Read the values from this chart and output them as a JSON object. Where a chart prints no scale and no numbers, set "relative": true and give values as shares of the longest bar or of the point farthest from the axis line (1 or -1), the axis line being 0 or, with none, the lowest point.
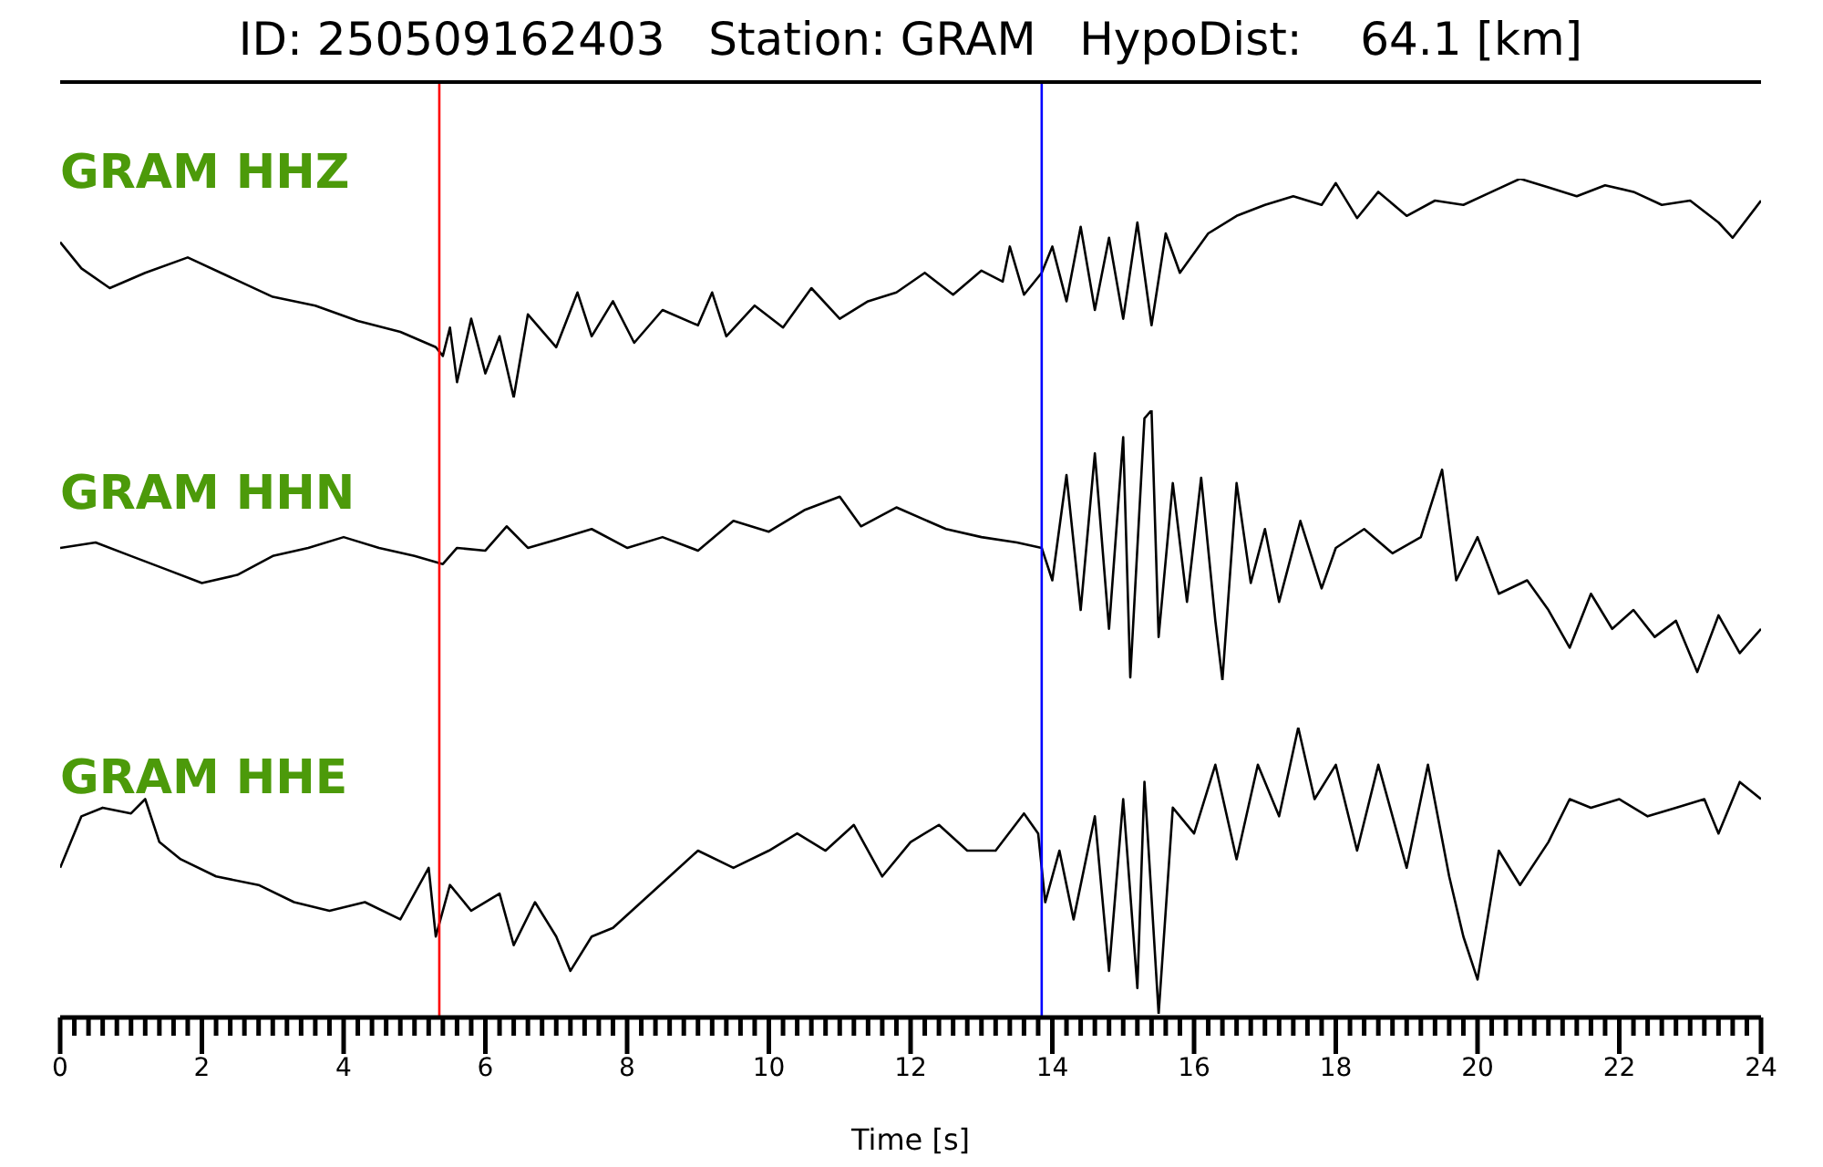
{
  "chart_data": [
    {
      "type": "line",
      "title": "ID: 250509162403   Station: GRAM   HypoDist:    64.1 [km]",
      "relative": true,
      "xlim": [
        0,
        24
      ],
      "tick_labels": false,
      "x": [
        0,
        0.3,
        0.7,
        1.2,
        1.8,
        2.4,
        3,
        3.6,
        4.2,
        4.8,
        5.3,
        5.4,
        5.5,
        5.6,
        5.8,
        6,
        6.2,
        6.4,
        6.6,
        7,
        7.3,
        7.5,
        7.8,
        8.1,
        8.5,
        9,
        9.2,
        9.4,
        9.8,
        10.2,
        10.6,
        11,
        11.4,
        11.8,
        12.2,
        12.6,
        13,
        13.3,
        13.4,
        13.6,
        13.85,
        14,
        14.2,
        14.4,
        14.6,
        14.8,
        15,
        15.2,
        15.4,
        15.6,
        15.8,
        16.2,
        16.6,
        17,
        17.4,
        17.8,
        18,
        18.3,
        18.6,
        19,
        19.4,
        19.8,
        20.2,
        20.6,
        21,
        21.4,
        21.8,
        22.2,
        22.6,
        23,
        23.4,
        23.6,
        24
      ],
      "series": [
        {
          "name": "GRAM HHZ",
          "color": "#000000",
          "values": [
            0.71,
            0.59,
            0.5,
            0.57,
            0.64,
            0.55,
            0.46,
            0.42,
            0.35,
            0.3,
            0.23,
            0.19,
            0.32,
            0.07,
            0.36,
            0.11,
            0.28,
            0,
            0.38,
            0.23,
            0.48,
            0.28,
            0.44,
            0.25,
            0.4,
            0.33,
            0.48,
            0.28,
            0.42,
            0.32,
            0.5,
            0.36,
            0.44,
            0.48,
            0.57,
            0.47,
            0.58,
            0.53,
            0.69,
            0.47,
            0.57,
            0.69,
            0.44,
            0.78,
            0.4,
            0.73,
            0.36,
            0.8,
            0.33,
            0.75,
            0.57,
            0.75,
            0.83,
            0.88,
            0.92,
            0.88,
            0.98,
            0.82,
            0.94,
            0.83,
            0.9,
            0.88,
            0.94,
            1,
            0.96,
            0.92,
            0.97,
            0.94,
            0.88,
            0.9,
            0.8,
            0.73,
            0.9
          ]
        }
      ],
      "ref_lines": [
        {
          "axis": "x",
          "value": 5.35,
          "color": "#ff0000"
        },
        {
          "axis": "x",
          "value": 13.85,
          "color": "#0000ff"
        }
      ]
    },
    {
      "type": "line",
      "relative": true,
      "xlim": [
        0,
        24
      ],
      "tick_labels": false,
      "x": [
        0,
        0.5,
        1,
        1.5,
        2,
        2.5,
        3,
        3.5,
        4,
        4.5,
        5,
        5.4,
        5.6,
        6,
        6.3,
        6.6,
        7,
        7.5,
        8,
        8.5,
        9,
        9.5,
        10,
        10.5,
        11,
        11.3,
        11.8,
        12.5,
        13,
        13.5,
        13.85,
        14,
        14.2,
        14.4,
        14.6,
        14.8,
        15,
        15.1,
        15.3,
        15.4,
        15.5,
        15.7,
        15.9,
        16.1,
        16.3,
        16.4,
        16.6,
        16.8,
        17,
        17.2,
        17.5,
        17.8,
        18,
        18.4,
        18.8,
        19.2,
        19.5,
        19.7,
        20,
        20.3,
        20.7,
        21,
        21.3,
        21.6,
        21.9,
        22.2,
        22.5,
        22.8,
        23.1,
        23.4,
        23.7,
        24
      ],
      "series": [
        {
          "name": "GRAM HHN",
          "color": "#000000",
          "values": [
            0.49,
            0.51,
            0.46,
            0.41,
            0.36,
            0.39,
            0.46,
            0.49,
            0.53,
            0.49,
            0.46,
            0.43,
            0.49,
            0.48,
            0.57,
            0.49,
            0.52,
            0.56,
            0.49,
            0.53,
            0.48,
            0.59,
            0.55,
            0.63,
            0.68,
            0.57,
            0.64,
            0.56,
            0.53,
            0.51,
            0.49,
            0.37,
            0.76,
            0.26,
            0.84,
            0.19,
            0.9,
            0.01,
            0.97,
            1,
            0.16,
            0.73,
            0.29,
            0.75,
            0.22,
            0,
            0.73,
            0.36,
            0.56,
            0.29,
            0.59,
            0.34,
            0.49,
            0.56,
            0.47,
            0.53,
            0.78,
            0.37,
            0.53,
            0.32,
            0.37,
            0.26,
            0.12,
            0.32,
            0.19,
            0.26,
            0.16,
            0.22,
            0.03,
            0.24,
            0.1,
            0.19
          ]
        }
      ],
      "ref_lines": [
        {
          "axis": "x",
          "value": 5.35,
          "color": "#ff0000"
        },
        {
          "axis": "x",
          "value": 13.85,
          "color": "#0000ff"
        }
      ]
    },
    {
      "type": "line",
      "xlabel": "Time [s]",
      "relative": true,
      "xlim": [
        0,
        24
      ],
      "tick_labels": "x",
      "xticks": [
        0,
        {
          "value": 0.2,
          "label": null
        },
        {
          "value": 0.4,
          "label": null
        },
        {
          "value": 0.6,
          "label": null
        },
        {
          "value": 0.8,
          "label": null
        },
        {
          "value": 1,
          "label": null
        },
        {
          "value": 1.2,
          "label": null
        },
        {
          "value": 1.4,
          "label": null
        },
        {
          "value": 1.6,
          "label": null
        },
        {
          "value": 1.8,
          "label": null
        },
        2,
        {
          "value": 2.2,
          "label": null
        },
        {
          "value": 2.4,
          "label": null
        },
        {
          "value": 2.6,
          "label": null
        },
        {
          "value": 2.8,
          "label": null
        },
        {
          "value": 3,
          "label": null
        },
        {
          "value": 3.2,
          "label": null
        },
        {
          "value": 3.4,
          "label": null
        },
        {
          "value": 3.6,
          "label": null
        },
        {
          "value": 3.8,
          "label": null
        },
        4,
        {
          "value": 4.2,
          "label": null
        },
        {
          "value": 4.4,
          "label": null
        },
        {
          "value": 4.6,
          "label": null
        },
        {
          "value": 4.8,
          "label": null
        },
        {
          "value": 5,
          "label": null
        },
        {
          "value": 5.2,
          "label": null
        },
        {
          "value": 5.4,
          "label": null
        },
        {
          "value": 5.6,
          "label": null
        },
        {
          "value": 5.8,
          "label": null
        },
        6,
        {
          "value": 6.2,
          "label": null
        },
        {
          "value": 6.4,
          "label": null
        },
        {
          "value": 6.6,
          "label": null
        },
        {
          "value": 6.8,
          "label": null
        },
        {
          "value": 7,
          "label": null
        },
        {
          "value": 7.2,
          "label": null
        },
        {
          "value": 7.4,
          "label": null
        },
        {
          "value": 7.6,
          "label": null
        },
        {
          "value": 7.8,
          "label": null
        },
        8,
        {
          "value": 8.2,
          "label": null
        },
        {
          "value": 8.4,
          "label": null
        },
        {
          "value": 8.6,
          "label": null
        },
        {
          "value": 8.8,
          "label": null
        },
        {
          "value": 9,
          "label": null
        },
        {
          "value": 9.2,
          "label": null
        },
        {
          "value": 9.4,
          "label": null
        },
        {
          "value": 9.6,
          "label": null
        },
        {
          "value": 9.8,
          "label": null
        },
        10,
        {
          "value": 10.2,
          "label": null
        },
        {
          "value": 10.4,
          "label": null
        },
        {
          "value": 10.6,
          "label": null
        },
        {
          "value": 10.8,
          "label": null
        },
        {
          "value": 11,
          "label": null
        },
        {
          "value": 11.2,
          "label": null
        },
        {
          "value": 11.4,
          "label": null
        },
        {
          "value": 11.6,
          "label": null
        },
        {
          "value": 11.8,
          "label": null
        },
        12,
        {
          "value": 12.2,
          "label": null
        },
        {
          "value": 12.4,
          "label": null
        },
        {
          "value": 12.6,
          "label": null
        },
        {
          "value": 12.8,
          "label": null
        },
        {
          "value": 13,
          "label": null
        },
        {
          "value": 13.2,
          "label": null
        },
        {
          "value": 13.4,
          "label": null
        },
        {
          "value": 13.6,
          "label": null
        },
        {
          "value": 13.8,
          "label": null
        },
        14,
        {
          "value": 14.2,
          "label": null
        },
        {
          "value": 14.4,
          "label": null
        },
        {
          "value": 14.6,
          "label": null
        },
        {
          "value": 14.8,
          "label": null
        },
        {
          "value": 15,
          "label": null
        },
        {
          "value": 15.2,
          "label": null
        },
        {
          "value": 15.4,
          "label": null
        },
        {
          "value": 15.6,
          "label": null
        },
        {
          "value": 15.8,
          "label": null
        },
        16,
        {
          "value": 16.2,
          "label": null
        },
        {
          "value": 16.4,
          "label": null
        },
        {
          "value": 16.6,
          "label": null
        },
        {
          "value": 16.8,
          "label": null
        },
        {
          "value": 17,
          "label": null
        },
        {
          "value": 17.2,
          "label": null
        },
        {
          "value": 17.4,
          "label": null
        },
        {
          "value": 17.6,
          "label": null
        },
        {
          "value": 17.8,
          "label": null
        },
        18,
        {
          "value": 18.2,
          "label": null
        },
        {
          "value": 18.4,
          "label": null
        },
        {
          "value": 18.6,
          "label": null
        },
        {
          "value": 18.8,
          "label": null
        },
        {
          "value": 19,
          "label": null
        },
        {
          "value": 19.2,
          "label": null
        },
        {
          "value": 19.4,
          "label": null
        },
        {
          "value": 19.6,
          "label": null
        },
        {
          "value": 19.8,
          "label": null
        },
        20,
        {
          "value": 20.2,
          "label": null
        },
        {
          "value": 20.4,
          "label": null
        },
        {
          "value": 20.6,
          "label": null
        },
        {
          "value": 20.8,
          "label": null
        },
        {
          "value": 21,
          "label": null
        },
        {
          "value": 21.2,
          "label": null
        },
        {
          "value": 21.4,
          "label": null
        },
        {
          "value": 21.6,
          "label": null
        },
        {
          "value": 21.8,
          "label": null
        },
        22,
        {
          "value": 22.2,
          "label": null
        },
        {
          "value": 22.4,
          "label": null
        },
        {
          "value": 22.6,
          "label": null
        },
        {
          "value": 22.8,
          "label": null
        },
        {
          "value": 23,
          "label": null
        },
        {
          "value": 23.2,
          "label": null
        },
        {
          "value": 23.4,
          "label": null
        },
        {
          "value": 23.6,
          "label": null
        },
        {
          "value": 23.8,
          "label": null
        },
        24
      ],
      "x": [
        0,
        0.15,
        0.3,
        0.6,
        1,
        1.2,
        1.4,
        1.7,
        2.2,
        2.8,
        3.3,
        3.8,
        4.3,
        4.8,
        5.2,
        5.3,
        5.5,
        5.8,
        6.2,
        6.4,
        6.7,
        7,
        7.2,
        7.5,
        7.8,
        8.2,
        8.6,
        9,
        9.5,
        10,
        10.4,
        10.8,
        11.2,
        11.6,
        12,
        12.4,
        12.8,
        13.2,
        13.6,
        13.8,
        13.9,
        14.1,
        14.3,
        14.6,
        14.8,
        15,
        15.2,
        15.3,
        15.5,
        15.7,
        16,
        16.3,
        16.6,
        16.9,
        17.2,
        17.47,
        17.7,
        18,
        18.3,
        18.6,
        19,
        19.3,
        19.6,
        19.8,
        20,
        20.3,
        20.6,
        21,
        21.3,
        21.6,
        22,
        22.4,
        22.8,
        23.2,
        23.4,
        23.7,
        24
      ],
      "series": [
        {
          "name": "GRAM HHE",
          "color": "#000000",
          "values": [
            0.51,
            0.6,
            0.69,
            0.72,
            0.7,
            0.75,
            0.6,
            0.54,
            0.48,
            0.45,
            0.39,
            0.36,
            0.39,
            0.33,
            0.51,
            0.27,
            0.45,
            0.36,
            0.42,
            0.24,
            0.39,
            0.27,
            0.15,
            0.27,
            0.3,
            0.39,
            0.48,
            0.57,
            0.51,
            0.57,
            0.63,
            0.57,
            0.66,
            0.48,
            0.6,
            0.66,
            0.57,
            0.57,
            0.7,
            0.63,
            0.39,
            0.57,
            0.33,
            0.69,
            0.15,
            0.75,
            0.09,
            0.81,
            0,
            0.72,
            0.63,
            0.87,
            0.54,
            0.87,
            0.69,
            1,
            0.75,
            0.87,
            0.57,
            0.87,
            0.51,
            0.87,
            0.48,
            0.27,
            0.12,
            0.57,
            0.45,
            0.6,
            0.75,
            0.72,
            0.75,
            0.69,
            0.72,
            0.75,
            0.63,
            0.81,
            0.75
          ]
        }
      ],
      "ref_lines": [
        {
          "axis": "x",
          "value": 5.35,
          "color": "#ff0000"
        },
        {
          "axis": "x",
          "value": 13.85,
          "color": "#0000ff"
        }
      ]
    }
  ]
}
